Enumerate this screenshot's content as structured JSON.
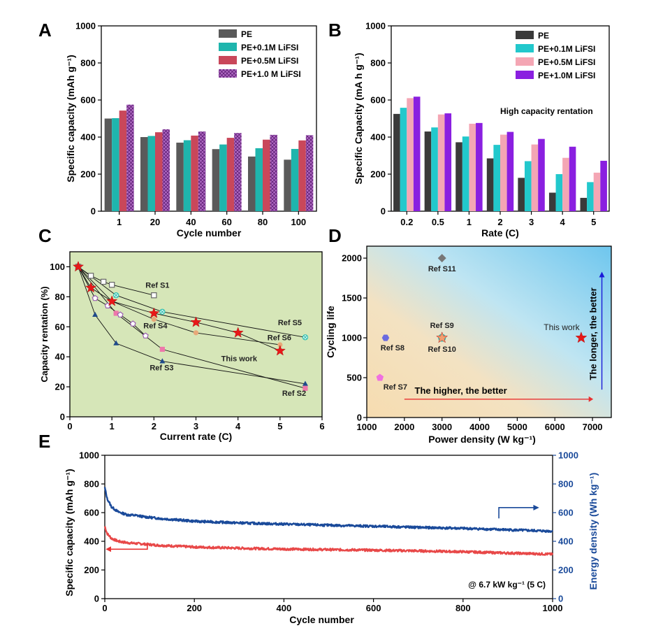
{
  "chart_data": [
    {
      "panel": "A",
      "type": "bar",
      "xlabel": "Cycle number",
      "ylabel": "Specific capacity (mAh g⁻¹)",
      "categories": [
        "1",
        "20",
        "40",
        "60",
        "80",
        "100"
      ],
      "ylim": [
        0,
        1000
      ],
      "yticks": [
        0,
        200,
        400,
        600,
        800,
        1000
      ],
      "legend_position": "top-right",
      "series": [
        {
          "name": "PE",
          "values": [
            500,
            400,
            370,
            335,
            295,
            278
          ],
          "color": "#5a5a5a"
        },
        {
          "name": "PE+0.1M LiFSI",
          "values": [
            502,
            406,
            383,
            360,
            340,
            336
          ],
          "color": "#1fb5ad"
        },
        {
          "name": "PE+0.5M LiFSI",
          "values": [
            543,
            426,
            408,
            396,
            386,
            382
          ],
          "color": "#c9475a"
        },
        {
          "name": "PE+1.0 M LiFSI",
          "values": [
            575,
            442,
            430,
            422,
            412,
            410
          ],
          "color": "#9c3fb0"
        }
      ]
    },
    {
      "panel": "B",
      "type": "bar",
      "xlabel": "Rate (C)",
      "ylabel": "Specific Capacity (mA h g⁻¹)",
      "categories": [
        "0.2",
        "0.5",
        "1",
        "2",
        "3",
        "4",
        "5"
      ],
      "ylim": [
        0,
        1000
      ],
      "yticks": [
        0,
        200,
        400,
        600,
        800,
        1000
      ],
      "legend_position": "top-right",
      "annotation": "High capacity rentation",
      "series": [
        {
          "name": "PE",
          "values": [
            525,
            430,
            372,
            285,
            180,
            100,
            72
          ],
          "color": "#3a3a3a"
        },
        {
          "name": "PE+0.1M LiFSI",
          "values": [
            558,
            452,
            403,
            358,
            270,
            200,
            157
          ],
          "color": "#22c8cc"
        },
        {
          "name": "PE+0.5M LiFSI",
          "values": [
            610,
            522,
            472,
            413,
            360,
            288,
            208
          ],
          "color": "#f4a6b4"
        },
        {
          "name": "PE+1.0M LiFSI",
          "values": [
            618,
            528,
            476,
            428,
            390,
            348,
            272
          ],
          "color": "#8a1fe0"
        }
      ]
    },
    {
      "panel": "C",
      "type": "scatter",
      "xlabel": "Current rate (C)",
      "ylabel": "Capacity rentation (%)",
      "xlim": [
        0,
        6
      ],
      "ylim": [
        0,
        110
      ],
      "xticks": [
        0,
        1,
        2,
        3,
        4,
        5,
        6
      ],
      "yticks": [
        0,
        20,
        40,
        60,
        80,
        100
      ],
      "background": "#d6e6b8",
      "series": [
        {
          "name": "Ref S1",
          "marker": "square-open",
          "color": "#666666",
          "points": [
            [
              0.2,
              100
            ],
            [
              0.5,
              94
            ],
            [
              0.8,
              90
            ],
            [
              1.0,
              88
            ],
            [
              2.0,
              81
            ]
          ]
        },
        {
          "name": "Ref S2",
          "marker": "square-filled",
          "color": "#ee77aa",
          "points": [
            [
              0.2,
              100
            ],
            [
              1.1,
              69
            ],
            [
              2.2,
              45
            ],
            [
              5.6,
              19
            ]
          ]
        },
        {
          "name": "Ref S3",
          "marker": "triangle",
          "color": "#1f4a8a",
          "points": [
            [
              0.2,
              100
            ],
            [
              0.6,
              68
            ],
            [
              1.1,
              49
            ],
            [
              2.2,
              37
            ],
            [
              5.6,
              22
            ]
          ]
        },
        {
          "name": "Ref S4",
          "marker": "pentagon-open",
          "color": "#9a5fb0",
          "points": [
            [
              0.2,
              100
            ],
            [
              0.6,
              79
            ],
            [
              0.9,
              74
            ],
            [
              1.2,
              68
            ],
            [
              1.5,
              62
            ],
            [
              1.8,
              54
            ]
          ]
        },
        {
          "name": "Ref S5",
          "marker": "circle-cross",
          "color": "#2ec0b0",
          "points": [
            [
              0.2,
              100
            ],
            [
              1.1,
              81
            ],
            [
              2.2,
              70
            ],
            [
              5.6,
              53
            ]
          ]
        },
        {
          "name": "Ref S6",
          "marker": "circle",
          "color": "#e8a878",
          "points": [
            [
              0.2,
              100
            ],
            [
              1.0,
              77
            ],
            [
              2.0,
              65
            ],
            [
              3.0,
              56
            ],
            [
              5.0,
              48
            ]
          ]
        },
        {
          "name": "This work",
          "marker": "star",
          "color": "#e81818",
          "points": [
            [
              0.2,
              100
            ],
            [
              0.5,
              86
            ],
            [
              1.0,
              77
            ],
            [
              2.0,
              69
            ],
            [
              3.0,
              63
            ],
            [
              4.0,
              56
            ],
            [
              5.0,
              44
            ]
          ]
        }
      ]
    },
    {
      "panel": "D",
      "type": "scatter",
      "xlabel": "Power density (W kg⁻¹)",
      "ylabel": "Cycling life",
      "xlim": [
        1000,
        7500
      ],
      "ylim": [
        0,
        2150
      ],
      "xticks": [
        1000,
        2000,
        3000,
        4000,
        5000,
        6000,
        7000
      ],
      "yticks": [
        0,
        500,
        1000,
        1500,
        2000
      ],
      "points": [
        {
          "label": "Ref S11",
          "x": 3000,
          "y": 2000,
          "marker": "diamond",
          "color": "#777777"
        },
        {
          "label": "Ref S9",
          "x": 3000,
          "y": 1000,
          "marker": "circle-cross",
          "color": "#2ec0b0"
        },
        {
          "label": "Ref S10",
          "x": 3000,
          "y": 1000,
          "marker": "star",
          "color": "#f0a070"
        },
        {
          "label": "Ref S8",
          "x": 1500,
          "y": 1000,
          "marker": "hexagon",
          "color": "#6a6ae0"
        },
        {
          "label": "Ref S7",
          "x": 1350,
          "y": 500,
          "marker": "pentagon",
          "color": "#f070e0"
        },
        {
          "label": "This work",
          "x": 6700,
          "y": 1000,
          "marker": "star",
          "color": "#e81818"
        }
      ],
      "annotations": [
        "The higher, the better",
        "The longer, the better"
      ]
    },
    {
      "panel": "E",
      "type": "line",
      "xlabel": "Cycle number",
      "ylabel": "Specific capacity (mAh g⁻¹)",
      "y2label": "Energy density (Wh kg⁻¹)",
      "xlim": [
        0,
        1000
      ],
      "ylim": [
        0,
        1000
      ],
      "y2lim": [
        0,
        1000
      ],
      "xticks": [
        0,
        200,
        400,
        600,
        800,
        1000
      ],
      "yticks": [
        0,
        200,
        400,
        600,
        800,
        1000
      ],
      "annotation": "@ 6.7 kW kg⁻¹ (5 C)",
      "series": [
        {
          "name": "Specific capacity",
          "axis": "left",
          "color": "#e84848",
          "x": [
            0,
            5,
            15,
            30,
            50,
            70,
            90,
            120,
            200,
            300,
            400,
            500,
            600,
            700,
            800,
            900,
            1000
          ],
          "values": [
            505,
            455,
            420,
            400,
            390,
            385,
            380,
            372,
            360,
            352,
            346,
            342,
            338,
            333,
            327,
            318,
            310
          ]
        },
        {
          "name": "Energy density",
          "axis": "right",
          "color": "#1a4a9a",
          "x": [
            0,
            5,
            15,
            30,
            50,
            70,
            90,
            120,
            200,
            300,
            400,
            500,
            600,
            700,
            800,
            900,
            1000
          ],
          "values": [
            775,
            700,
            640,
            605,
            585,
            580,
            570,
            560,
            540,
            528,
            520,
            512,
            505,
            497,
            490,
            480,
            470
          ]
        }
      ]
    }
  ]
}
